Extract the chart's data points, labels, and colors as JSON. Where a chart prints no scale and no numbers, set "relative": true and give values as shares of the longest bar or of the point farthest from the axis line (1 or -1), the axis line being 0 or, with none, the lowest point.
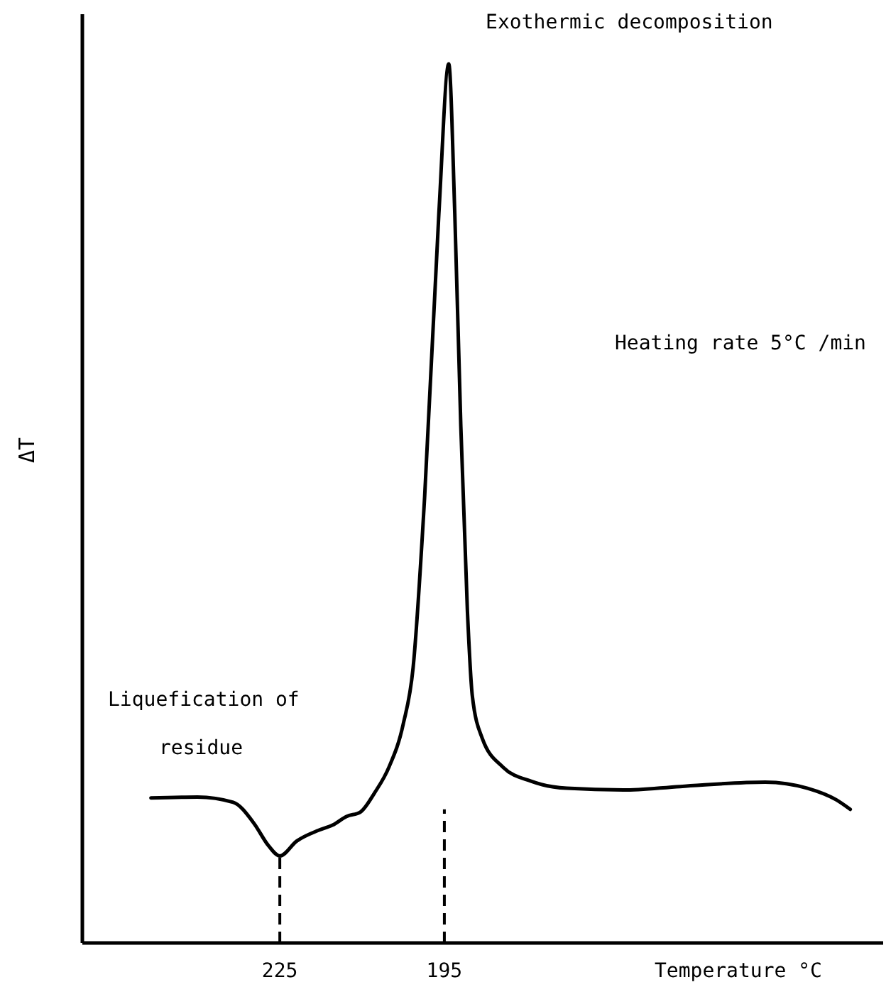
{
  "chart_data": {
    "type": "line",
    "relative": true,
    "xlabel": "Temperature °C",
    "ylabel": "ΔT",
    "xlim": [
      261,
      115
    ],
    "xticks": [
      225,
      195
    ],
    "x": [
      248.5,
      240.0,
      233.5,
      229.7,
      227.1,
      225,
      221.9,
      218.0,
      215.4,
      212.8,
      210.3,
      207.7,
      205.1,
      202.5,
      200.7,
      198.6,
      196.0,
      194.2,
      193.1,
      192.0,
      190.8,
      189.9,
      188.1,
      184.3,
      179.2,
      172.7,
      162.4,
      152.0,
      136.5,
      128.8,
      123.6,
      121.0
    ],
    "series": [
      {
        "color": "#000000",
        "values": [
          0.165,
          0.166,
          0.16,
          0.136,
          0.111,
          0.099,
          0.116,
          0.128,
          0.134,
          0.144,
          0.149,
          0.171,
          0.2,
          0.249,
          0.313,
          0.507,
          0.83,
          1,
          0.83,
          0.588,
          0.378,
          0.281,
          0.233,
          0.2,
          0.184,
          0.176,
          0.174,
          0.178,
          0.183,
          0.176,
          0.163,
          0.152
        ]
      }
    ],
    "ref_lines": [
      {
        "axis": "x",
        "value": 225,
        "line_style": "dashed",
        "color": "#000000"
      },
      {
        "axis": "x",
        "value": 195,
        "line_style": "dashed",
        "color": "#000000"
      }
    ],
    "annotations": [
      {
        "text": "Exothermic decomposition",
        "x": 194.2,
        "y": 1
      },
      "Heating rate 5°C /min",
      "Liquefication of",
      "residue"
    ],
    "marker": "none",
    "line_style": "solid",
    "grid": false,
    "legend": false
  }
}
